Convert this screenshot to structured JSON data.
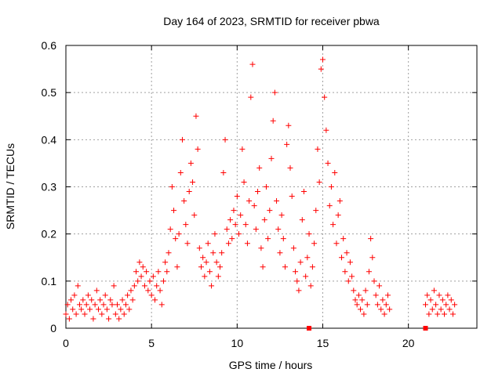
{
  "chart_data": {
    "type": "scatter",
    "title": "Day 164 of 2023, SRMTID for receiver pbwa",
    "xlabel": "GPS time / hours",
    "ylabel": "SRMTID / TECUs",
    "xlim": [
      0,
      24
    ],
    "ylim": [
      0,
      0.6
    ],
    "xticks": [
      0,
      5,
      10,
      15,
      20
    ],
    "yticks": [
      0,
      0.1,
      0.2,
      0.3,
      0.4,
      0.5,
      0.6
    ],
    "grid": true,
    "marker": "+",
    "series": [
      {
        "name": "SRMTID",
        "color": "#ff0000",
        "points": [
          [
            0.0,
            0.03
          ],
          [
            0.1,
            0.05
          ],
          [
            0.2,
            0.02
          ],
          [
            0.3,
            0.06
          ],
          [
            0.4,
            0.04
          ],
          [
            0.5,
            0.07
          ],
          [
            0.6,
            0.03
          ],
          [
            0.7,
            0.09
          ],
          [
            0.8,
            0.05
          ],
          [
            0.9,
            0.04
          ],
          [
            1.0,
            0.06
          ],
          [
            1.1,
            0.03
          ],
          [
            1.2,
            0.05
          ],
          [
            1.3,
            0.07
          ],
          [
            1.4,
            0.04
          ],
          [
            1.5,
            0.06
          ],
          [
            1.6,
            0.02
          ],
          [
            1.7,
            0.05
          ],
          [
            1.8,
            0.08
          ],
          [
            1.9,
            0.04
          ],
          [
            2.0,
            0.06
          ],
          [
            2.1,
            0.03
          ],
          [
            2.2,
            0.05
          ],
          [
            2.3,
            0.07
          ],
          [
            2.4,
            0.04
          ],
          [
            2.5,
            0.02
          ],
          [
            2.6,
            0.06
          ],
          [
            2.7,
            0.05
          ],
          [
            2.8,
            0.09
          ],
          [
            2.9,
            0.03
          ],
          [
            3.0,
            0.05
          ],
          [
            3.1,
            0.02
          ],
          [
            3.2,
            0.04
          ],
          [
            3.3,
            0.06
          ],
          [
            3.4,
            0.03
          ],
          [
            3.5,
            0.05
          ],
          [
            3.6,
            0.07
          ],
          [
            3.7,
            0.04
          ],
          [
            3.8,
            0.08
          ],
          [
            3.9,
            0.06
          ],
          [
            4.0,
            0.09
          ],
          [
            4.1,
            0.12
          ],
          [
            4.2,
            0.1
          ],
          [
            4.3,
            0.14
          ],
          [
            4.4,
            0.11
          ],
          [
            4.5,
            0.13
          ],
          [
            4.6,
            0.09
          ],
          [
            4.7,
            0.12
          ],
          [
            4.8,
            0.08
          ],
          [
            4.9,
            0.1
          ],
          [
            5.0,
            0.07
          ],
          [
            5.1,
            0.11
          ],
          [
            5.2,
            0.06
          ],
          [
            5.3,
            0.09
          ],
          [
            5.4,
            0.12
          ],
          [
            5.5,
            0.08
          ],
          [
            5.6,
            0.05
          ],
          [
            5.7,
            0.1
          ],
          [
            5.8,
            0.14
          ],
          [
            5.9,
            0.12
          ],
          [
            6.0,
            0.16
          ],
          [
            6.1,
            0.21
          ],
          [
            6.2,
            0.3
          ],
          [
            6.3,
            0.25
          ],
          [
            6.4,
            0.19
          ],
          [
            6.5,
            0.13
          ],
          [
            6.6,
            0.2
          ],
          [
            6.7,
            0.33
          ],
          [
            6.8,
            0.4
          ],
          [
            6.9,
            0.27
          ],
          [
            7.0,
            0.22
          ],
          [
            7.1,
            0.18
          ],
          [
            7.2,
            0.29
          ],
          [
            7.3,
            0.35
          ],
          [
            7.4,
            0.31
          ],
          [
            7.5,
            0.24
          ],
          [
            7.6,
            0.45
          ],
          [
            7.7,
            0.38
          ],
          [
            7.8,
            0.17
          ],
          [
            7.9,
            0.13
          ],
          [
            8.0,
            0.15
          ],
          [
            8.1,
            0.11
          ],
          [
            8.2,
            0.14
          ],
          [
            8.3,
            0.18
          ],
          [
            8.4,
            0.12
          ],
          [
            8.5,
            0.09
          ],
          [
            8.6,
            0.16
          ],
          [
            8.7,
            0.2
          ],
          [
            8.8,
            0.14
          ],
          [
            8.9,
            0.11
          ],
          [
            9.0,
            0.13
          ],
          [
            9.1,
            0.16
          ],
          [
            9.2,
            0.33
          ],
          [
            9.3,
            0.4
          ],
          [
            9.4,
            0.21
          ],
          [
            9.5,
            0.18
          ],
          [
            9.6,
            0.23
          ],
          [
            9.7,
            0.19
          ],
          [
            9.8,
            0.25
          ],
          [
            9.9,
            0.22
          ],
          [
            10.0,
            0.28
          ],
          [
            10.1,
            0.2
          ],
          [
            10.2,
            0.24
          ],
          [
            10.3,
            0.38
          ],
          [
            10.4,
            0.31
          ],
          [
            10.5,
            0.22
          ],
          [
            10.6,
            0.18
          ],
          [
            10.7,
            0.27
          ],
          [
            10.8,
            0.49
          ],
          [
            10.9,
            0.56
          ],
          [
            11.0,
            0.26
          ],
          [
            11.1,
            0.21
          ],
          [
            11.2,
            0.29
          ],
          [
            11.3,
            0.34
          ],
          [
            11.4,
            0.17
          ],
          [
            11.5,
            0.13
          ],
          [
            11.6,
            0.23
          ],
          [
            11.7,
            0.3
          ],
          [
            11.8,
            0.19
          ],
          [
            11.9,
            0.25
          ],
          [
            12.0,
            0.36
          ],
          [
            12.1,
            0.44
          ],
          [
            12.2,
            0.5
          ],
          [
            12.3,
            0.27
          ],
          [
            12.4,
            0.21
          ],
          [
            12.5,
            0.16
          ],
          [
            12.6,
            0.24
          ],
          [
            12.7,
            0.19
          ],
          [
            12.8,
            0.13
          ],
          [
            12.9,
            0.39
          ],
          [
            13.0,
            0.43
          ],
          [
            13.1,
            0.34
          ],
          [
            13.2,
            0.28
          ],
          [
            13.3,
            0.17
          ],
          [
            13.4,
            0.12
          ],
          [
            13.5,
            0.1
          ],
          [
            13.6,
            0.08
          ],
          [
            13.7,
            0.14
          ],
          [
            13.8,
            0.23
          ],
          [
            13.9,
            0.29
          ],
          [
            14.0,
            0.11
          ],
          [
            14.1,
            0.15
          ],
          [
            14.2,
            0.2
          ],
          [
            14.3,
            0.09
          ],
          [
            14.4,
            0.13
          ],
          [
            14.5,
            0.18
          ],
          [
            14.6,
            0.25
          ],
          [
            14.7,
            0.38
          ],
          [
            14.8,
            0.31
          ],
          [
            14.9,
            0.55
          ],
          [
            15.0,
            0.57
          ],
          [
            15.1,
            0.49
          ],
          [
            15.2,
            0.42
          ],
          [
            15.3,
            0.35
          ],
          [
            15.4,
            0.26
          ],
          [
            15.5,
            0.3
          ],
          [
            15.6,
            0.22
          ],
          [
            15.7,
            0.33
          ],
          [
            15.8,
            0.18
          ],
          [
            15.9,
            0.24
          ],
          [
            16.0,
            0.27
          ],
          [
            16.1,
            0.15
          ],
          [
            16.2,
            0.19
          ],
          [
            16.3,
            0.12
          ],
          [
            16.4,
            0.16
          ],
          [
            16.5,
            0.1
          ],
          [
            16.6,
            0.14
          ],
          [
            16.7,
            0.11
          ],
          [
            16.8,
            0.08
          ],
          [
            16.9,
            0.06
          ],
          [
            17.0,
            0.05
          ],
          [
            17.1,
            0.07
          ],
          [
            17.2,
            0.04
          ],
          [
            17.3,
            0.06
          ],
          [
            17.4,
            0.03
          ],
          [
            17.5,
            0.08
          ],
          [
            17.6,
            0.05
          ],
          [
            17.7,
            0.12
          ],
          [
            17.8,
            0.19
          ],
          [
            17.9,
            0.15
          ],
          [
            18.0,
            0.1
          ],
          [
            18.1,
            0.07
          ],
          [
            18.2,
            0.05
          ],
          [
            18.3,
            0.09
          ],
          [
            18.4,
            0.04
          ],
          [
            18.5,
            0.06
          ],
          [
            18.6,
            0.03
          ],
          [
            18.7,
            0.05
          ],
          [
            18.8,
            0.07
          ],
          [
            18.9,
            0.04
          ],
          [
            21.0,
            0.05
          ],
          [
            21.1,
            0.07
          ],
          [
            21.2,
            0.03
          ],
          [
            21.3,
            0.06
          ],
          [
            21.4,
            0.04
          ],
          [
            21.5,
            0.08
          ],
          [
            21.6,
            0.05
          ],
          [
            21.7,
            0.03
          ],
          [
            21.8,
            0.07
          ],
          [
            21.9,
            0.04
          ],
          [
            22.0,
            0.06
          ],
          [
            22.1,
            0.03
          ],
          [
            22.2,
            0.05
          ],
          [
            22.3,
            0.07
          ],
          [
            22.4,
            0.04
          ],
          [
            22.5,
            0.06
          ],
          [
            22.6,
            0.03
          ],
          [
            22.7,
            0.05
          ]
        ]
      }
    ],
    "axis_markers": [
      {
        "x": 14.2,
        "y": 0,
        "shape": "square"
      },
      {
        "x": 21.0,
        "y": 0,
        "shape": "square"
      }
    ]
  }
}
